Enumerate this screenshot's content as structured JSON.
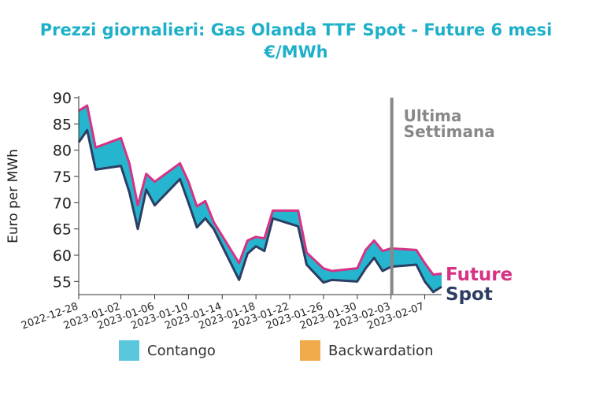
{
  "title_line1": "Prezzi giornalieri: Gas Olanda TTF Spot - Future 6 mesi",
  "title_line2": "€/MWh",
  "chart_data": {
    "type": "area",
    "ylabel": "Euro per MWh",
    "ylim": [
      52.5,
      90
    ],
    "yticks": [
      55,
      60,
      65,
      70,
      75,
      80,
      85,
      90
    ],
    "xtick_labels": [
      "2022-12-28",
      "2023-01-02",
      "2023-01-06",
      "2023-01-10",
      "2023-01-14",
      "2023-01-18",
      "2023-01-22",
      "2023-01-26",
      "2023-01-30",
      "2023-02-03",
      "2023-02-07"
    ],
    "xrange": [
      "2022-12-28",
      "2023-02-09"
    ],
    "annotation": {
      "text_line1": "Ultima",
      "text_line2": "Settimana",
      "date": "2023-02-03",
      "color": "#888888"
    },
    "series": [
      {
        "name": "Future",
        "color": "#d63384",
        "dates": [
          "2022-12-28",
          "2022-12-29",
          "2022-12-30",
          "2023-01-02",
          "2023-01-03",
          "2023-01-04",
          "2023-01-05",
          "2023-01-06",
          "2023-01-09",
          "2023-01-10",
          "2023-01-11",
          "2023-01-12",
          "2023-01-13",
          "2023-01-16",
          "2023-01-17",
          "2023-01-18",
          "2023-01-19",
          "2023-01-20",
          "2023-01-23",
          "2023-01-24",
          "2023-01-25",
          "2023-01-26",
          "2023-01-27",
          "2023-01-30",
          "2023-01-31",
          "2023-02-01",
          "2023-02-02",
          "2023-02-03",
          "2023-02-06",
          "2023-02-07",
          "2023-02-08",
          "2023-02-09"
        ],
        "values": [
          87.5,
          88.5,
          80.5,
          82.3,
          77.5,
          69.5,
          75.5,
          74.0,
          77.5,
          74.0,
          69.3,
          70.3,
          66.3,
          58.5,
          62.8,
          63.5,
          63.2,
          68.5,
          68.5,
          60.5,
          59.0,
          57.5,
          57.0,
          57.5,
          61.0,
          62.8,
          60.8,
          61.3,
          61.0,
          58.5,
          56.3,
          56.5
        ]
      },
      {
        "name": "Spot",
        "color": "#2c3e63",
        "dates": [
          "2022-12-28",
          "2022-12-29",
          "2022-12-30",
          "2023-01-02",
          "2023-01-03",
          "2023-01-04",
          "2023-01-05",
          "2023-01-06",
          "2023-01-09",
          "2023-01-10",
          "2023-01-11",
          "2023-01-12",
          "2023-01-13",
          "2023-01-16",
          "2023-01-17",
          "2023-01-18",
          "2023-01-19",
          "2023-01-20",
          "2023-01-23",
          "2023-01-24",
          "2023-01-25",
          "2023-01-26",
          "2023-01-27",
          "2023-01-30",
          "2023-01-31",
          "2023-02-01",
          "2023-02-02",
          "2023-02-03",
          "2023-02-06",
          "2023-02-07",
          "2023-02-08",
          "2023-02-09"
        ],
        "values": [
          81.5,
          83.8,
          76.3,
          77.0,
          72.0,
          65.0,
          72.5,
          69.5,
          74.5,
          70.0,
          65.3,
          67.0,
          65.0,
          55.3,
          60.3,
          61.7,
          60.8,
          67.0,
          65.5,
          58.2,
          56.5,
          54.8,
          55.3,
          55.0,
          57.5,
          59.5,
          57.0,
          57.8,
          58.2,
          55.0,
          53.0,
          54.0
        ]
      }
    ],
    "legend": [
      {
        "label": "Contango",
        "color": "#5bc7dd"
      },
      {
        "label": "Backwardation",
        "color": "#f0aa4a"
      }
    ],
    "fill_color": "#25b5cf"
  }
}
